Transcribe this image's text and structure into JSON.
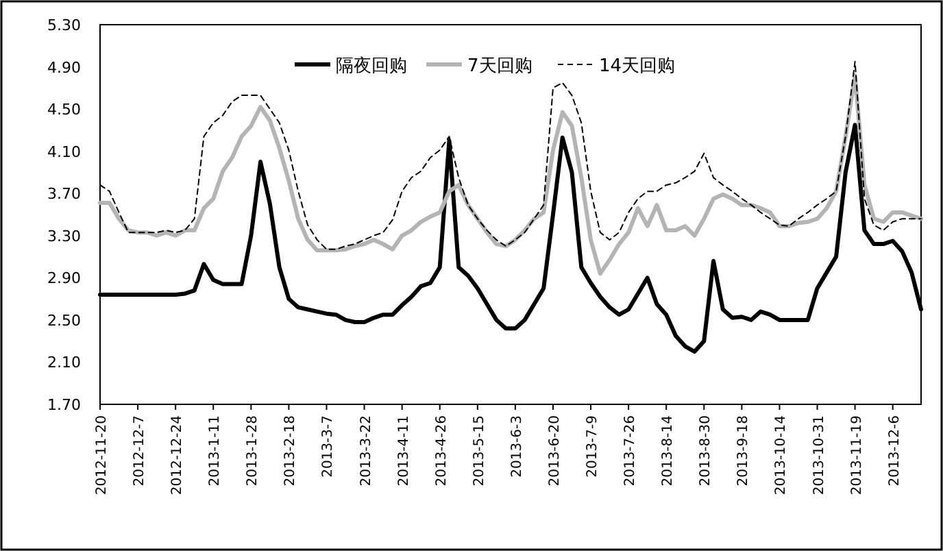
{
  "chart_data": {
    "type": "line",
    "categories": [
      "2012-11-20",
      null,
      null,
      null,
      "2012-12-7",
      null,
      null,
      null,
      "2012-12-24",
      null,
      null,
      null,
      "2013-1-11",
      null,
      null,
      null,
      "2013-1-28",
      null,
      null,
      null,
      "2013-2-18",
      null,
      null,
      null,
      "2013-3-7",
      null,
      null,
      null,
      "2013-3-22",
      null,
      null,
      null,
      "2013-4-11",
      null,
      null,
      null,
      "2013-4-26",
      null,
      null,
      null,
      "2013-5-15",
      null,
      null,
      null,
      "2013-6-3",
      null,
      null,
      null,
      "2013-6-20",
      null,
      null,
      null,
      "2013-7-9",
      null,
      null,
      null,
      "2013-7-26",
      null,
      null,
      null,
      "2013-8-14",
      null,
      null,
      null,
      "2013-8-30",
      null,
      null,
      null,
      "2013-9-18",
      null,
      null,
      null,
      "2013-10-14",
      null,
      null,
      null,
      "2013-10-31",
      null,
      null,
      null,
      "2013-11-19",
      null,
      null,
      null,
      "2013-12-6",
      null,
      null,
      null
    ],
    "series": [
      {
        "name": "隔夜回购",
        "color": "#000000",
        "line_style": "solid",
        "values": [
          2.74,
          2.74,
          2.74,
          2.74,
          2.74,
          2.74,
          2.74,
          2.74,
          2.74,
          2.75,
          2.78,
          3.03,
          2.88,
          2.84,
          2.84,
          2.84,
          3.3,
          4.0,
          3.6,
          3.0,
          2.7,
          2.62,
          2.6,
          2.58,
          2.56,
          2.55,
          2.5,
          2.48,
          2.48,
          2.52,
          2.55,
          2.55,
          2.64,
          2.72,
          2.82,
          2.85,
          3.0,
          4.2,
          3.0,
          2.92,
          2.8,
          2.65,
          2.5,
          2.42,
          2.42,
          2.5,
          2.65,
          2.8,
          3.5,
          4.23,
          3.9,
          3.0,
          2.85,
          2.72,
          2.62,
          2.55,
          2.6,
          2.75,
          2.9,
          2.65,
          2.55,
          2.35,
          2.25,
          2.2,
          2.3,
          3.06,
          2.6,
          2.52,
          2.53,
          2.5,
          2.58,
          2.55,
          2.5,
          2.5,
          2.5,
          2.5,
          2.8,
          2.95,
          3.1,
          3.9,
          4.35,
          3.35,
          3.22,
          3.22,
          3.25,
          3.15,
          2.95,
          2.6
        ]
      },
      {
        "name": "7天回购",
        "color": "#b4b4b4",
        "line_style": "solid",
        "values": [
          3.61,
          3.61,
          3.46,
          3.35,
          3.33,
          3.33,
          3.3,
          3.33,
          3.3,
          3.35,
          3.35,
          3.56,
          3.65,
          3.91,
          4.04,
          4.24,
          4.34,
          4.52,
          4.39,
          4.13,
          3.82,
          3.46,
          3.26,
          3.16,
          3.16,
          3.16,
          3.17,
          3.2,
          3.22,
          3.26,
          3.22,
          3.17,
          3.3,
          3.35,
          3.43,
          3.48,
          3.52,
          3.72,
          3.78,
          3.59,
          3.46,
          3.33,
          3.22,
          3.2,
          3.26,
          3.35,
          3.46,
          3.52,
          4.11,
          4.47,
          4.34,
          3.85,
          3.26,
          2.94,
          3.07,
          3.22,
          3.33,
          3.56,
          3.39,
          3.59,
          3.35,
          3.35,
          3.39,
          3.3,
          3.46,
          3.65,
          3.69,
          3.65,
          3.59,
          3.59,
          3.56,
          3.52,
          3.39,
          3.39,
          3.42,
          3.43,
          3.46,
          3.56,
          3.72,
          4.24,
          4.82,
          3.78,
          3.46,
          3.43,
          3.52,
          3.52,
          3.49,
          3.46
        ]
      },
      {
        "name": "14天回购",
        "color": "#000000",
        "line_style": "dashed",
        "values": [
          3.78,
          3.72,
          3.52,
          3.33,
          3.33,
          3.33,
          3.33,
          3.35,
          3.33,
          3.35,
          3.46,
          4.24,
          4.37,
          4.44,
          4.57,
          4.63,
          4.63,
          4.63,
          4.5,
          4.37,
          4.11,
          3.72,
          3.4,
          3.26,
          3.17,
          3.17,
          3.2,
          3.22,
          3.26,
          3.3,
          3.33,
          3.45,
          3.72,
          3.85,
          3.91,
          4.04,
          4.11,
          4.24,
          3.85,
          3.59,
          3.46,
          3.35,
          3.26,
          3.2,
          3.26,
          3.33,
          3.46,
          3.59,
          4.7,
          4.75,
          4.63,
          4.37,
          3.72,
          3.33,
          3.26,
          3.33,
          3.52,
          3.65,
          3.72,
          3.72,
          3.78,
          3.8,
          3.85,
          3.91,
          4.08,
          3.85,
          3.78,
          3.72,
          3.65,
          3.59,
          3.52,
          3.46,
          3.4,
          3.39,
          3.46,
          3.52,
          3.59,
          3.65,
          3.72,
          4.24,
          4.95,
          3.65,
          3.4,
          3.35,
          3.43,
          3.46,
          3.46,
          3.46
        ]
      }
    ],
    "ylim": [
      1.7,
      5.3
    ],
    "yticks": [
      {
        "value": 1.7,
        "label": "1.70"
      },
      {
        "value": 2.1,
        "label": "2.10"
      },
      {
        "value": 2.5,
        "label": "2.50"
      },
      {
        "value": 2.9,
        "label": "2.90"
      },
      {
        "value": 3.3,
        "label": "3.30"
      },
      {
        "value": 3.7,
        "label": "3.70"
      },
      {
        "value": 4.1,
        "label": "4.10"
      },
      {
        "value": 4.5,
        "label": "4.50"
      },
      {
        "value": 4.9,
        "label": "4.90"
      },
      {
        "value": 5.3,
        "label": "5.30"
      }
    ],
    "grid": false,
    "legend": "top"
  }
}
